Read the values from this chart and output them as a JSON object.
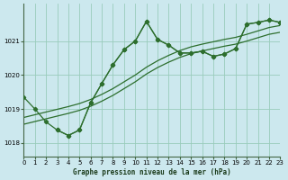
{
  "title": "Graphe pression niveau de la mer (hPa)",
  "bg_color": "#cce8ee",
  "line_color": "#2d6e2d",
  "grid_color": "#99ccbb",
  "xlim": [
    0,
    23
  ],
  "ylim": [
    1017.6,
    1022.1
  ],
  "yticks": [
    1018,
    1019,
    1020,
    1021
  ],
  "xtick_labels": [
    "0",
    "1",
    "2",
    "3",
    "4",
    "5",
    "6",
    "7",
    "8",
    "9",
    "10",
    "11",
    "12",
    "13",
    "14",
    "15",
    "16",
    "17",
    "18",
    "19",
    "20",
    "21",
    "22",
    "23"
  ],
  "xticks": [
    0,
    1,
    2,
    3,
    4,
    5,
    6,
    7,
    8,
    9,
    10,
    11,
    12,
    13,
    14,
    15,
    16,
    17,
    18,
    19,
    20,
    21,
    22,
    23
  ],
  "series": [
    {
      "x": [
        0,
        1,
        2,
        3,
        4,
        5,
        6,
        7,
        8,
        9,
        10,
        11,
        12,
        13,
        14,
        15,
        16,
        17,
        18,
        19,
        20,
        21,
        22,
        23
      ],
      "y": [
        1019.35,
        1019.0,
        1018.62,
        1018.38,
        1018.22,
        1018.38,
        1019.18,
        1019.75,
        1020.3,
        1020.75,
        1021.0,
        1021.58,
        1021.05,
        1020.88,
        1020.65,
        1020.65,
        1020.7,
        1020.55,
        1020.62,
        1020.78,
        1021.5,
        1021.55,
        1021.62,
        1021.55
      ],
      "marker": "D",
      "markersize": 2.2,
      "linewidth": 0.9,
      "zorder": 3
    },
    {
      "x": [
        3,
        4,
        5,
        6,
        7,
        8,
        9,
        10,
        11,
        12,
        13,
        14,
        15,
        16,
        17,
        18,
        19,
        20,
        21,
        22,
        23
      ],
      "y": [
        1018.38,
        1018.22,
        1018.38,
        1019.18,
        1019.75,
        1020.3,
        1020.75,
        1021.0,
        1021.58,
        1021.05,
        1020.88,
        1020.65,
        1020.65,
        1020.7,
        1020.55,
        1020.62,
        1020.78,
        1021.5,
        1021.55,
        1021.62,
        1021.55
      ],
      "marker": "D",
      "markersize": 2.2,
      "linewidth": 0.9,
      "zorder": 3
    },
    {
      "x": [
        0,
        1,
        2,
        3,
        4,
        5,
        6,
        7,
        8,
        9,
        10,
        11,
        12,
        13,
        14,
        15,
        16,
        17,
        18,
        19,
        20,
        21,
        22,
        23
      ],
      "y": [
        1018.55,
        1018.63,
        1018.71,
        1018.79,
        1018.87,
        1018.96,
        1019.08,
        1019.23,
        1019.4,
        1019.6,
        1019.8,
        1020.03,
        1020.22,
        1020.38,
        1020.52,
        1020.63,
        1020.71,
        1020.78,
        1020.85,
        1020.91,
        1021.0,
        1021.1,
        1021.2,
        1021.26
      ],
      "marker": null,
      "markersize": 0,
      "linewidth": 0.9,
      "zorder": 2
    },
    {
      "x": [
        0,
        1,
        2,
        3,
        4,
        5,
        6,
        7,
        8,
        9,
        10,
        11,
        12,
        13,
        14,
        15,
        16,
        17,
        18,
        19,
        20,
        21,
        22,
        23
      ],
      "y": [
        1018.75,
        1018.83,
        1018.91,
        1018.99,
        1019.07,
        1019.16,
        1019.28,
        1019.43,
        1019.6,
        1019.8,
        1020.0,
        1020.23,
        1020.42,
        1020.58,
        1020.72,
        1020.83,
        1020.91,
        1020.98,
        1021.05,
        1021.11,
        1021.2,
        1021.3,
        1021.4,
        1021.46
      ],
      "marker": null,
      "markersize": 0,
      "linewidth": 0.9,
      "zorder": 2
    }
  ],
  "ylabel_fontsize": 5.5,
  "xlabel_fontsize": 5.5,
  "tick_labelsize": 5.0
}
